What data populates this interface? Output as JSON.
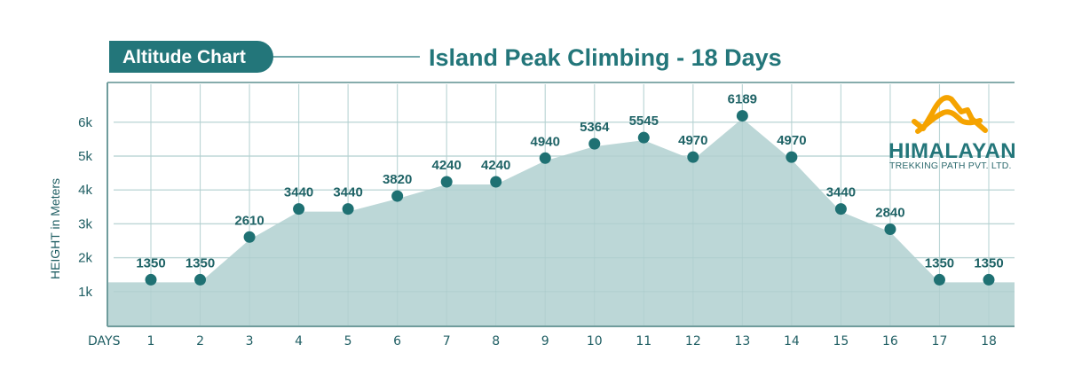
{
  "header": {
    "badge_label": "Altitude Chart",
    "title": "Island Peak Climbing - 18 Days"
  },
  "logo": {
    "name": "HIMALAYAN",
    "tagline": "TREKKING PATH PVT. LTD."
  },
  "colors": {
    "primary": "#23767a",
    "area_fill": "#bcd7d7",
    "grid": "#d3e5e5",
    "axis": "#6f9c9c",
    "logo_accent": "#f5a300"
  },
  "chart_data": {
    "type": "area",
    "title": "Island Peak Climbing - 18 Days",
    "xlabel": "DAYS",
    "ylabel": "HEIGHT in Meters",
    "categories": [
      "1",
      "2",
      "3",
      "4",
      "5",
      "6",
      "7",
      "8",
      "9",
      "10",
      "11",
      "12",
      "13",
      "14",
      "15",
      "16",
      "17",
      "18"
    ],
    "values": [
      1350,
      1350,
      2610,
      3440,
      3440,
      3820,
      4240,
      4240,
      4940,
      5364,
      5545,
      4970,
      6189,
      4970,
      3440,
      2840,
      1350,
      1350
    ],
    "y_ticks": [
      {
        "value": 1000,
        "label": "1k"
      },
      {
        "value": 2000,
        "label": "2k"
      },
      {
        "value": 3000,
        "label": "3k"
      },
      {
        "value": 4000,
        "label": "4k"
      },
      {
        "value": 5000,
        "label": "5k"
      },
      {
        "value": 6000,
        "label": "6k"
      }
    ],
    "ylim": [
      0,
      7000
    ],
    "grid": true,
    "markers": true,
    "data_labels": true,
    "legend": "none"
  }
}
